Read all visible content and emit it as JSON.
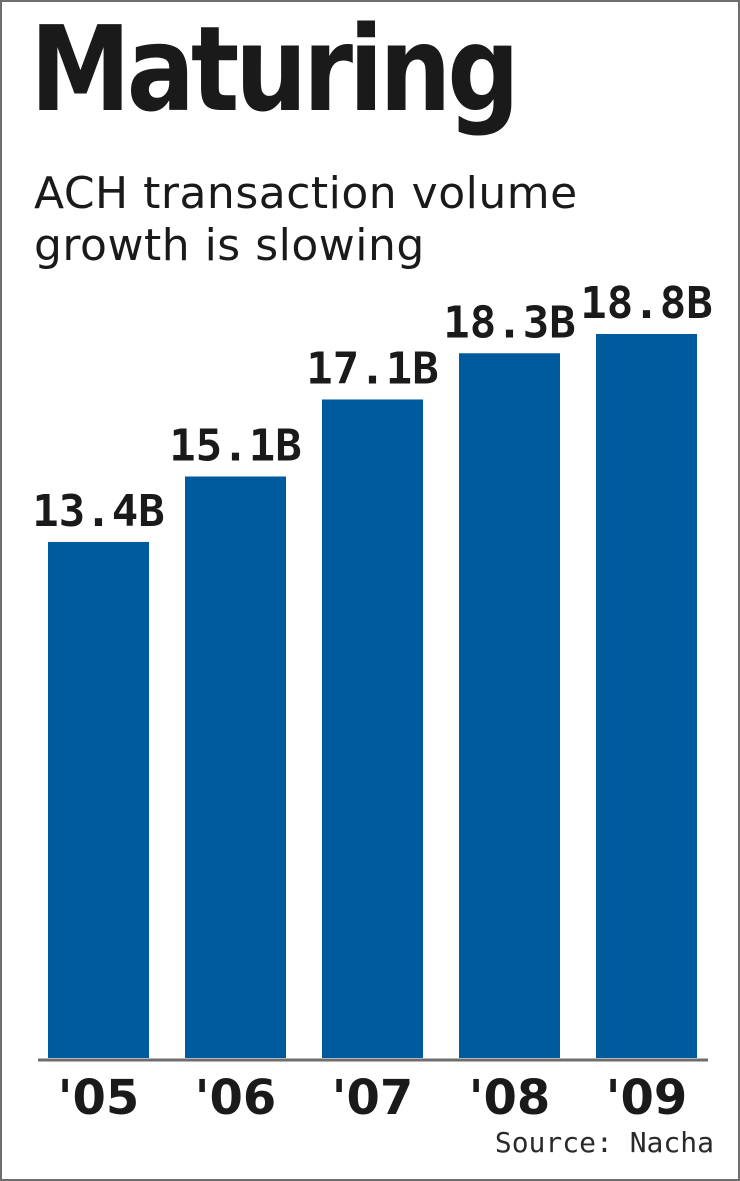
{
  "header": {
    "title": "Maturing",
    "subtitle": "ACH transaction volume growth is slowing"
  },
  "footer": {
    "source": "Source: Nacha"
  },
  "colors": {
    "bar": "#005b9e",
    "text": "#1a1a1a",
    "axis": "#6e6e6e"
  },
  "chart_data": {
    "type": "bar",
    "title": "Maturing",
    "subtitle": "ACH transaction volume growth is slowing",
    "categories": [
      "'05",
      "'06",
      "'07",
      "'08",
      "'09"
    ],
    "values": [
      13.4,
      15.1,
      17.1,
      18.3,
      18.8
    ],
    "value_labels": [
      "13.4B",
      "15.1B",
      "17.1B",
      "18.3B",
      "18.8B"
    ],
    "unit": "B",
    "ylim": [
      0,
      18.8
    ],
    "grid": false,
    "legend": "none",
    "xlabel": "",
    "ylabel": ""
  }
}
